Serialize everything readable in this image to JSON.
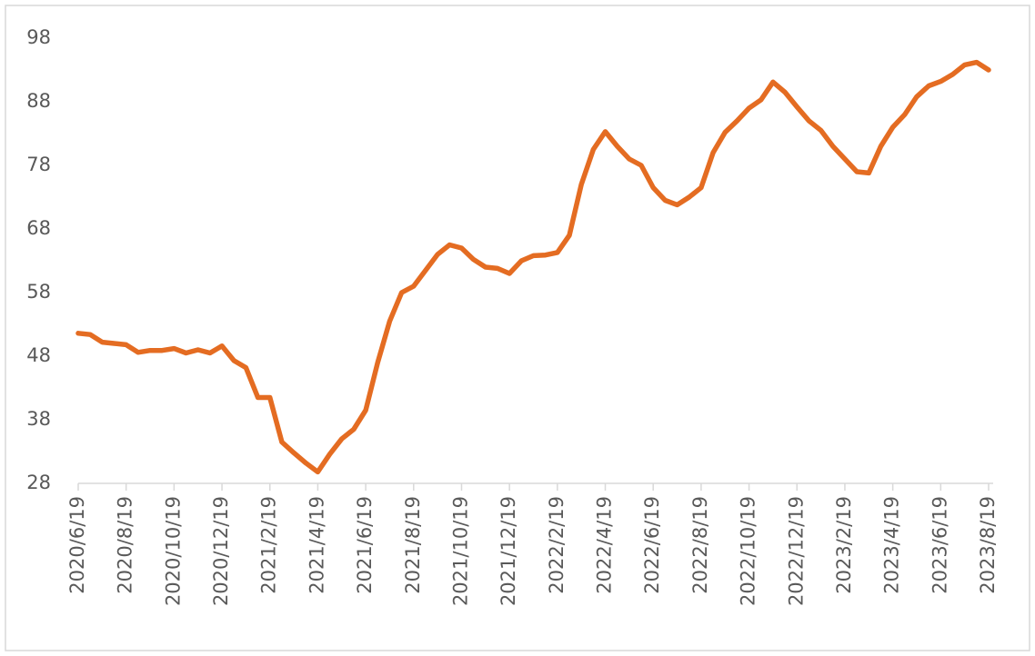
{
  "chart_data": {
    "type": "line",
    "categories": [
      "2020/6/19",
      null,
      null,
      null,
      "2020/8/19",
      null,
      null,
      null,
      "2020/10/19",
      null,
      null,
      null,
      "2020/12/19",
      null,
      null,
      null,
      "2021/2/19",
      null,
      null,
      null,
      "2021/4/19",
      null,
      null,
      null,
      "2021/6/19",
      null,
      null,
      null,
      "2021/8/19",
      null,
      null,
      null,
      "2021/10/19",
      null,
      null,
      null,
      "2021/12/19",
      null,
      null,
      null,
      "2022/2/19",
      null,
      null,
      null,
      "2022/4/19",
      null,
      null,
      null,
      "2022/6/19",
      null,
      null,
      null,
      "2022/8/19",
      null,
      null,
      null,
      "2022/10/19",
      null,
      null,
      null,
      "2022/12/19",
      null,
      null,
      null,
      "2023/2/19",
      null,
      null,
      null,
      "2023/4/19",
      null,
      null,
      null,
      "2023/6/19",
      null,
      null,
      null,
      "2023/8/19"
    ],
    "series": [
      {
        "color": "#e46c22",
        "values": [
          51.6,
          51.4,
          50.2,
          50.0,
          49.8,
          48.6,
          48.9,
          48.9,
          49.2,
          48.5,
          49.0,
          48.5,
          49.6,
          47.3,
          46.2,
          41.5,
          41.5,
          34.5,
          32.8,
          31.2,
          29.8,
          32.6,
          35.0,
          36.5,
          39.5,
          47.0,
          53.5,
          58.0,
          59.0,
          61.5,
          64.0,
          65.5,
          65.0,
          63.2,
          62.0,
          61.8,
          61.0,
          63.0,
          63.8,
          63.9,
          64.3,
          67.0,
          75.0,
          80.5,
          83.3,
          81.0,
          79.0,
          78.0,
          74.5,
          72.5,
          71.8,
          73.0,
          74.5,
          80.0,
          83.2,
          85.0,
          87.0,
          88.3,
          91.1,
          89.5,
          87.2,
          85.0,
          83.5,
          81.0,
          79.0,
          77.0,
          76.8,
          81.0,
          84.0,
          86.0,
          88.8,
          90.5,
          91.2,
          92.3,
          93.8,
          94.2,
          93.0
        ]
      }
    ],
    "ylim": [
      28,
      98
    ],
    "yticks": [
      28,
      38,
      48,
      58,
      68,
      78,
      88,
      98
    ]
  }
}
